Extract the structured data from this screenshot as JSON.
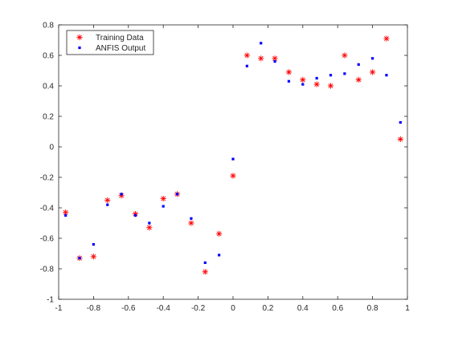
{
  "colors": {
    "training": "#ff0000",
    "anfis": "#0000ff",
    "axis": "#262626",
    "background": "#ffffff"
  },
  "chart_data": {
    "type": "scatter",
    "title": "",
    "xlabel": "",
    "ylabel": "",
    "xlim": [
      -1,
      1
    ],
    "ylim": [
      -1,
      0.8
    ],
    "grid": false,
    "legend_position": "top-left",
    "x_ticks": [
      -1,
      -0.8,
      -0.6,
      -0.4,
      -0.2,
      0,
      0.2,
      0.4,
      0.6,
      0.8,
      1
    ],
    "x_tick_labels": [
      "-1",
      "-0.8",
      "-0.6",
      "-0.4",
      "-0.2",
      "0",
      "0.2",
      "0.4",
      "0.6",
      "0.8",
      "1"
    ],
    "y_ticks": [
      -1,
      -0.8,
      -0.6,
      -0.4,
      -0.2,
      0,
      0.2,
      0.4,
      0.6,
      0.8
    ],
    "y_tick_labels": [
      "-1",
      "-0.8",
      "-0.6",
      "-0.4",
      "-0.2",
      "0",
      "0.2",
      "0.4",
      "0.6",
      "0.8"
    ],
    "series": [
      {
        "name": "Training Data",
        "marker": "asterisk",
        "color": "#ff0000",
        "x": [
          -0.96,
          -0.88,
          -0.8,
          -0.72,
          -0.64,
          -0.56,
          -0.48,
          -0.4,
          -0.32,
          -0.24,
          -0.16,
          -0.08,
          0.0,
          0.08,
          0.16,
          0.24,
          0.32,
          0.4,
          0.48,
          0.56,
          0.64,
          0.72,
          0.8,
          0.88,
          0.96
        ],
        "y": [
          -0.43,
          -0.73,
          -0.72,
          -0.35,
          -0.32,
          -0.44,
          -0.53,
          -0.34,
          -0.31,
          -0.5,
          -0.82,
          -0.57,
          -0.19,
          0.6,
          0.58,
          0.58,
          0.49,
          0.44,
          0.41,
          0.4,
          0.6,
          0.44,
          0.49,
          0.71,
          0.05
        ]
      },
      {
        "name": "ANFIS Output",
        "marker": "dot",
        "color": "#0000ff",
        "x": [
          -0.96,
          -0.88,
          -0.8,
          -0.72,
          -0.64,
          -0.56,
          -0.48,
          -0.4,
          -0.32,
          -0.24,
          -0.16,
          -0.08,
          0.0,
          0.08,
          0.16,
          0.24,
          0.32,
          0.4,
          0.48,
          0.56,
          0.64,
          0.72,
          0.8,
          0.88,
          0.96
        ],
        "y": [
          -0.45,
          -0.73,
          -0.64,
          -0.38,
          -0.31,
          -0.45,
          -0.5,
          -0.39,
          -0.31,
          -0.47,
          -0.76,
          -0.71,
          -0.08,
          0.53,
          0.68,
          0.56,
          0.43,
          0.41,
          0.45,
          0.47,
          0.48,
          0.54,
          0.58,
          0.47,
          0.16
        ]
      }
    ]
  }
}
